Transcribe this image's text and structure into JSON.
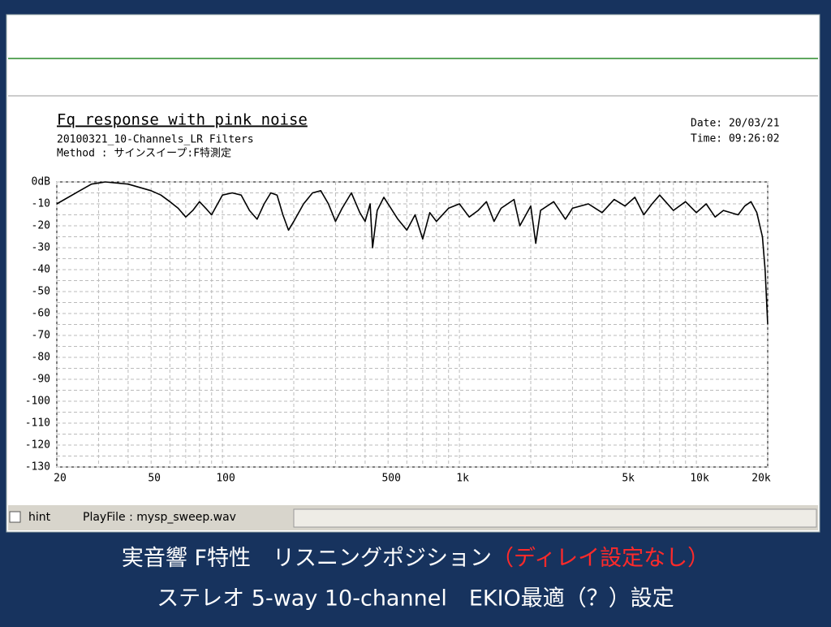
{
  "window": {
    "hint": "hint",
    "playfile": "PlayFile  :  mysp_sweep.wav"
  },
  "chart_data": {
    "type": "line",
    "title": "Fq response with pink noise",
    "subtitle": "20100321_10-Channels_LR Filters",
    "method": "Method :  サインスイープ:F特測定",
    "date": "Date: 20/03/21",
    "time": "Time: 09:26:02",
    "x": [
      20,
      25,
      28,
      32,
      40,
      50,
      55,
      60,
      65,
      70,
      75,
      80,
      85,
      90,
      100,
      110,
      120,
      130,
      140,
      150,
      160,
      170,
      180,
      190,
      200,
      220,
      240,
      260,
      280,
      300,
      320,
      350,
      380,
      400,
      420,
      430,
      450,
      480,
      500,
      550,
      600,
      650,
      700,
      750,
      800,
      900,
      1000,
      1100,
      1200,
      1300,
      1400,
      1500,
      1700,
      1800,
      2000,
      2100,
      2200,
      2500,
      2800,
      3000,
      3500,
      4000,
      4500,
      5000,
      5500,
      6000,
      6500,
      7000,
      8000,
      9000,
      10000,
      11000,
      12000,
      13000,
      15000,
      16000,
      17000,
      18000,
      19000,
      19500,
      20000
    ],
    "values": [
      -10,
      -4,
      -1,
      0,
      -1,
      -4,
      -6,
      -9,
      -12,
      -16,
      -13,
      -9,
      -12,
      -15,
      -6,
      -5,
      -6,
      -13,
      -17,
      -10,
      -5,
      -6,
      -15,
      -22,
      -18,
      -10,
      -5,
      -4,
      -10,
      -18,
      -12,
      -5,
      -14,
      -18,
      -10,
      -30,
      -13,
      -7,
      -10,
      -17,
      -22,
      -15,
      -26,
      -14,
      -18,
      -12,
      -10,
      -16,
      -13,
      -9,
      -18,
      -12,
      -8,
      -20,
      -11,
      -28,
      -13,
      -9,
      -17,
      -12,
      -10,
      -14,
      -8,
      -11,
      -7,
      -15,
      -10,
      -6,
      -13,
      -9,
      -14,
      -10,
      -16,
      -13,
      -15,
      -11,
      -9,
      -14,
      -25,
      -40,
      -65
    ],
    "color": "#000000",
    "log_x": true,
    "grid": true,
    "xlim": [
      20,
      20000
    ],
    "ylim": [
      -130,
      0
    ],
    "xticks": [
      20,
      50,
      100,
      500,
      {
        "value": 1000,
        "label": "1k"
      },
      {
        "value": 5000,
        "label": "5k"
      },
      {
        "value": 10000,
        "label": "10k"
      },
      {
        "value": 20000,
        "label": "20k"
      }
    ],
    "xgrid": [
      30,
      40,
      60,
      70,
      80,
      90,
      200,
      300,
      400,
      600,
      700,
      800,
      900,
      2000,
      3000,
      4000,
      6000,
      7000,
      8000,
      9000
    ],
    "yticks": [
      {
        "value": 0,
        "label": "0dB"
      },
      -10,
      -20,
      -30,
      -40,
      -50,
      -60,
      -70,
      -80,
      -90,
      -100,
      -110,
      -120,
      -130
    ],
    "ygrid": [
      -5,
      -15,
      -25,
      -35,
      -45,
      -55,
      -65,
      -75,
      -85,
      -95,
      -105,
      -115,
      -125
    ]
  },
  "caption": {
    "line1": "実音響 F特性　リスニングポジション",
    "line1_note": "（ディレイ設定なし）",
    "line2": "ステレオ 5-way 10-channel　EKIO最適（？）設定"
  }
}
